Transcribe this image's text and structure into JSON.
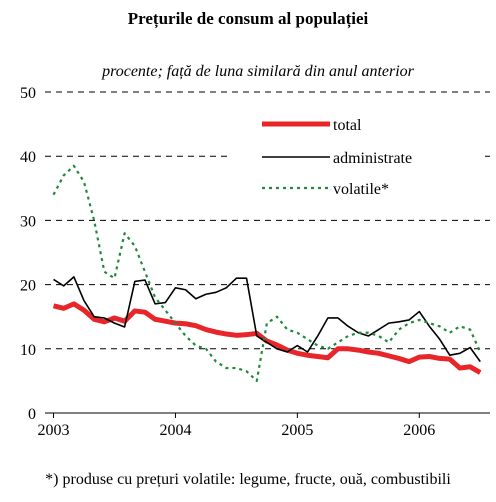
{
  "chart_data": {
    "type": "line",
    "title": "Prețurile de consum al populației",
    "subtitle": "procente; față de luna similară din anul anterior",
    "footnote": "*) produse cu prețuri volatile: legume, fructe, ouă, combustibili",
    "x": [
      2003,
      2003.083,
      2003.167,
      2003.25,
      2003.333,
      2003.417,
      2003.5,
      2003.583,
      2003.667,
      2003.75,
      2003.833,
      2003.917,
      2004,
      2004.083,
      2004.167,
      2004.25,
      2004.333,
      2004.417,
      2004.5,
      2004.583,
      2004.667,
      2004.75,
      2004.833,
      2004.917,
      2005,
      2005.083,
      2005.167,
      2005.25,
      2005.333,
      2005.417,
      2005.5,
      2005.583,
      2005.667,
      2005.75,
      2005.833,
      2005.917,
      2006,
      2006.083,
      2006.167,
      2006.25,
      2006.333,
      2006.417,
      2006.5
    ],
    "series": [
      {
        "name": "total",
        "color": "#e8262a",
        "style": "solid",
        "width": 5,
        "values": [
          16.7,
          16.3,
          17.0,
          16.0,
          14.6,
          14.2,
          14.8,
          14.3,
          15.9,
          15.7,
          14.6,
          14.3,
          14.0,
          13.9,
          13.6,
          13.0,
          12.6,
          12.3,
          12.1,
          12.2,
          12.4,
          11.2,
          10.6,
          9.8,
          9.3,
          9.0,
          8.8,
          8.6,
          10.0,
          10.0,
          9.8,
          9.5,
          9.3,
          8.9,
          8.5,
          8.0,
          8.7,
          8.8,
          8.5,
          8.4,
          7.0,
          7.2,
          6.3
        ]
      },
      {
        "name": "administrate",
        "color": "#000000",
        "style": "solid",
        "width": 1.6,
        "values": [
          20.8,
          19.8,
          21.2,
          17.5,
          15.0,
          14.8,
          14.0,
          13.4,
          20.5,
          20.7,
          17.0,
          17.2,
          19.5,
          19.2,
          17.8,
          18.5,
          18.8,
          19.5,
          21.0,
          21.0,
          12.0,
          11.0,
          10.0,
          9.5,
          10.5,
          9.5,
          12.0,
          14.8,
          14.8,
          13.5,
          12.5,
          12.0,
          13.0,
          14.0,
          14.2,
          14.5,
          15.8,
          13.5,
          11.5,
          9.0,
          9.3,
          10.2,
          8.0
        ]
      },
      {
        "name": "volatile*",
        "color": "#1f8a3a",
        "style": "dotted",
        "width": 2.2,
        "values": [
          34,
          37,
          38.5,
          36,
          30,
          22,
          21,
          28,
          26,
          22,
          18,
          16,
          14,
          12,
          10.5,
          10,
          8,
          7,
          7,
          6.5,
          5,
          14,
          15,
          13,
          12.5,
          11.5,
          10.5,
          10,
          11,
          12,
          12.5,
          12.5,
          12,
          11,
          13,
          14,
          14.5,
          14,
          13.5,
          12.5,
          13.5,
          13,
          9.5
        ]
      }
    ],
    "xlim": [
      2002.93,
      2006.58
    ],
    "xticks": [
      2003,
      2004,
      2005,
      2006
    ],
    "ylim": [
      0,
      50
    ],
    "yticks": [
      0,
      10,
      20,
      30,
      40,
      50
    ],
    "grid": true
  }
}
